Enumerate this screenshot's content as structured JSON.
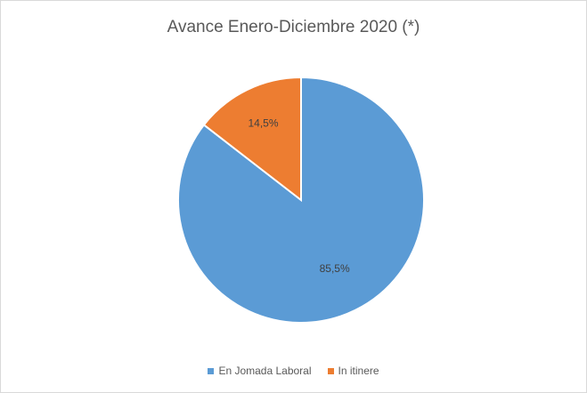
{
  "chart_data": {
    "type": "pie",
    "title": "Avance Enero-Diciembre 2020 (*)",
    "categories": [
      "En Jomada Laboral",
      "In itinere"
    ],
    "values": [
      85.5,
      14.5
    ],
    "data_labels": [
      "85,5%",
      "14,5%"
    ],
    "colors": [
      "#5b9bd5",
      "#ed7d31"
    ],
    "legend_position": "bottom"
  }
}
